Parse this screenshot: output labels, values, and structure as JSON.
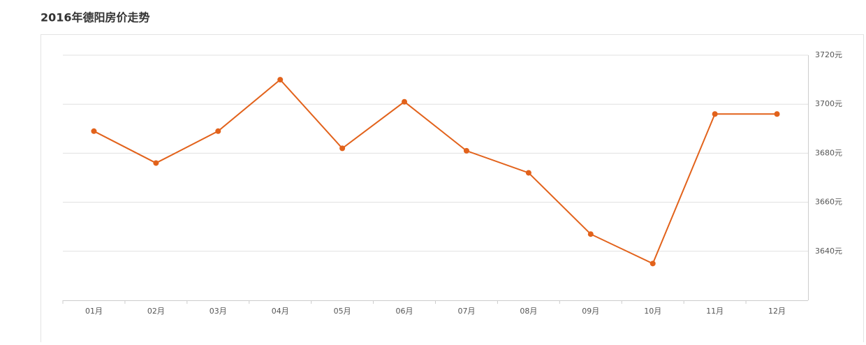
{
  "chart_data": {
    "type": "line",
    "title": "2016年德阳房价走势",
    "categories": [
      "01月",
      "02月",
      "03月",
      "04月",
      "05月",
      "06月",
      "07月",
      "08月",
      "09月",
      "10月",
      "11月",
      "12月"
    ],
    "series": [
      {
        "color": "#e2621b",
        "values": [
          3689,
          3676,
          3689,
          3710,
          3682,
          3701,
          3681,
          3672,
          3647,
          3635,
          3696,
          3696
        ]
      }
    ],
    "ylim": [
      3620,
      3720
    ],
    "yticks": [
      {
        "value": 3640,
        "label": "3640元"
      },
      {
        "value": 3660,
        "label": "3660元"
      },
      {
        "value": 3680,
        "label": "3680元"
      },
      {
        "value": 3700,
        "label": "3700元"
      },
      {
        "value": 3720,
        "label": "3720元"
      }
    ],
    "grid": true
  }
}
